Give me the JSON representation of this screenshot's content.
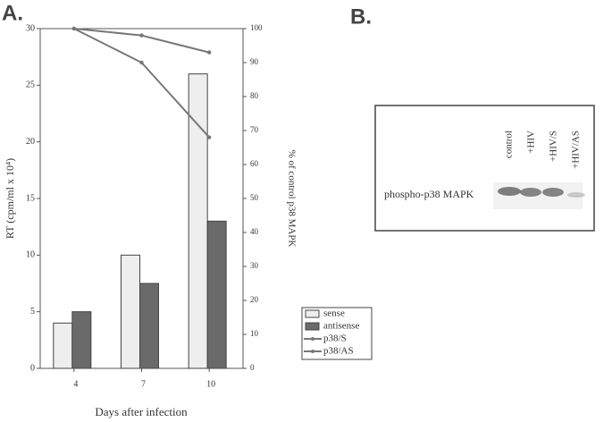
{
  "chart_data": {
    "type": "bar",
    "x_label": "Days after infection",
    "y_label": "RT (cpm/ml x 10⁴)",
    "y2_label": "% of control p38 MAPK",
    "categories": [
      "4",
      "7",
      "10"
    ],
    "ylim": [
      0,
      30
    ],
    "yticks": [
      0,
      5,
      10,
      15,
      20,
      25,
      30
    ],
    "y2lim": [
      0,
      100
    ],
    "y2ticks": [
      0,
      10,
      20,
      30,
      40,
      50,
      60,
      70,
      80,
      90,
      100
    ],
    "legend": "right",
    "series": [
      {
        "name": "sense",
        "type": "bar",
        "color": "#eeeeee",
        "values": [
          4,
          10,
          26
        ]
      },
      {
        "name": "antisense",
        "type": "bar",
        "color": "#6a6a6a",
        "values": [
          5,
          7.5,
          13
        ]
      },
      {
        "name": "p38/S",
        "type": "line",
        "axis": "y2",
        "color": "#777777",
        "values": [
          100,
          98,
          93
        ]
      },
      {
        "name": "p38/AS",
        "type": "line",
        "axis": "y2",
        "color": "#777777",
        "values": [
          100,
          90,
          68
        ]
      }
    ]
  },
  "panel_a": {
    "label": "A."
  },
  "panel_b": {
    "label": "B.",
    "lanes": [
      "control",
      "+HIV",
      "+HIV/S",
      "+HIV/AS"
    ],
    "band_label": "phospho-p38 MAPK"
  }
}
